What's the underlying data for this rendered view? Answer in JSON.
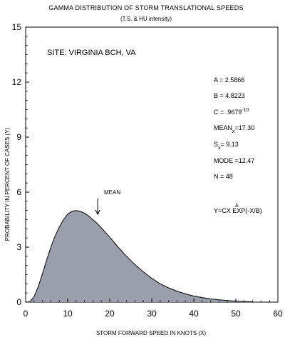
{
  "chart_data": {
    "type": "area",
    "title": "GAMMA DISTRIBUTION OF STORM TRANSLATIONAL SPEEDS",
    "subtitle": "(T.S. & HU intensity)",
    "site": "SITE:  VIRGINIA BCH, VA",
    "xlabel": "STORM FORWARD SPEED IN KNOTS (X)",
    "ylabel": "PROBABILITY IN PERCENT OF CASES (Y)",
    "xlim": [
      0,
      60
    ],
    "ylim": [
      0,
      15
    ],
    "xticks": [
      "0",
      "10",
      "20",
      "30",
      "40",
      "50",
      "60"
    ],
    "yticks": [
      "0",
      "3",
      "6",
      "9",
      "12",
      "15"
    ],
    "grid": false,
    "x": [
      0,
      1,
      2,
      3,
      4,
      5,
      6,
      7,
      8,
      9,
      10,
      11,
      12,
      13,
      14,
      15,
      16,
      17,
      18,
      19,
      20,
      22,
      24,
      26,
      28,
      30,
      32,
      34,
      36,
      38,
      40,
      42,
      44,
      46,
      48,
      50,
      52,
      54
    ],
    "y": [
      0,
      0.02,
      0.3,
      0.85,
      1.55,
      2.3,
      3.0,
      3.6,
      4.1,
      4.5,
      4.8,
      4.95,
      5.0,
      4.95,
      4.85,
      4.7,
      4.5,
      4.3,
      4.05,
      3.8,
      3.55,
      3.0,
      2.5,
      2.05,
      1.65,
      1.3,
      1.0,
      0.78,
      0.6,
      0.45,
      0.33,
      0.25,
      0.18,
      0.13,
      0.09,
      0.06,
      0.04,
      0.02
    ],
    "annotations": {
      "mean_label": "MEAN",
      "mean_x": 17.3,
      "params": {
        "a_label": "A = ",
        "a_value": "2.5866",
        "b_label": "B = ",
        "b_value": "4.8223",
        "c_label": "C = ",
        "c_value": ".9679",
        "c_exp": "-10",
        "mean_main": "MEAN",
        "mean_sub": "x",
        "mean_value": "=17.30",
        "s_main": "S",
        "s_sub": "x",
        "s_value": "=   9.13",
        "mode": "MODE =12.47",
        "n": "N = 48",
        "formula": "Y=CX EXP(-X/B)",
        "formula_exp": "A"
      }
    }
  }
}
